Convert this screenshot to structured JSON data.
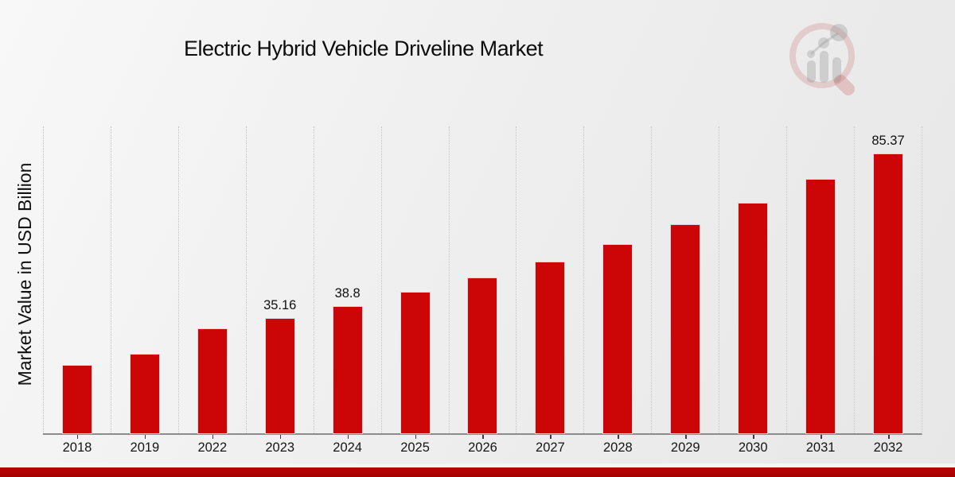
{
  "page": {
    "title": "Electric Hybrid Vehicle Driveline Market",
    "accent_color": "#b00404",
    "bar_color": "#cc0606",
    "watermark_icon": "magnifier-bar-chart-logo"
  },
  "chart_data": {
    "type": "bar",
    "title": "Electric Hybrid Vehicle Driveline Market",
    "xlabel": "",
    "ylabel": "Market Value in USD Billion",
    "categories": [
      "2018",
      "2019",
      "2022",
      "2023",
      "2024",
      "2025",
      "2026",
      "2027",
      "2028",
      "2029",
      "2030",
      "2031",
      "2032"
    ],
    "values": [
      20.6,
      24.0,
      32.0,
      35.16,
      38.8,
      43.0,
      47.4,
      52.4,
      57.7,
      63.7,
      70.3,
      77.7,
      85.37
    ],
    "data_labels": [
      "",
      "",
      "",
      "35.16",
      "38.8",
      "",
      "",
      "",
      "",
      "",
      "",
      "",
      "85.37"
    ],
    "ylim": [
      0,
      94
    ],
    "yticks_visible": false,
    "grid": "vertical-dotted-between-categories",
    "legend": "none",
    "bar_color": "#cc0606"
  }
}
